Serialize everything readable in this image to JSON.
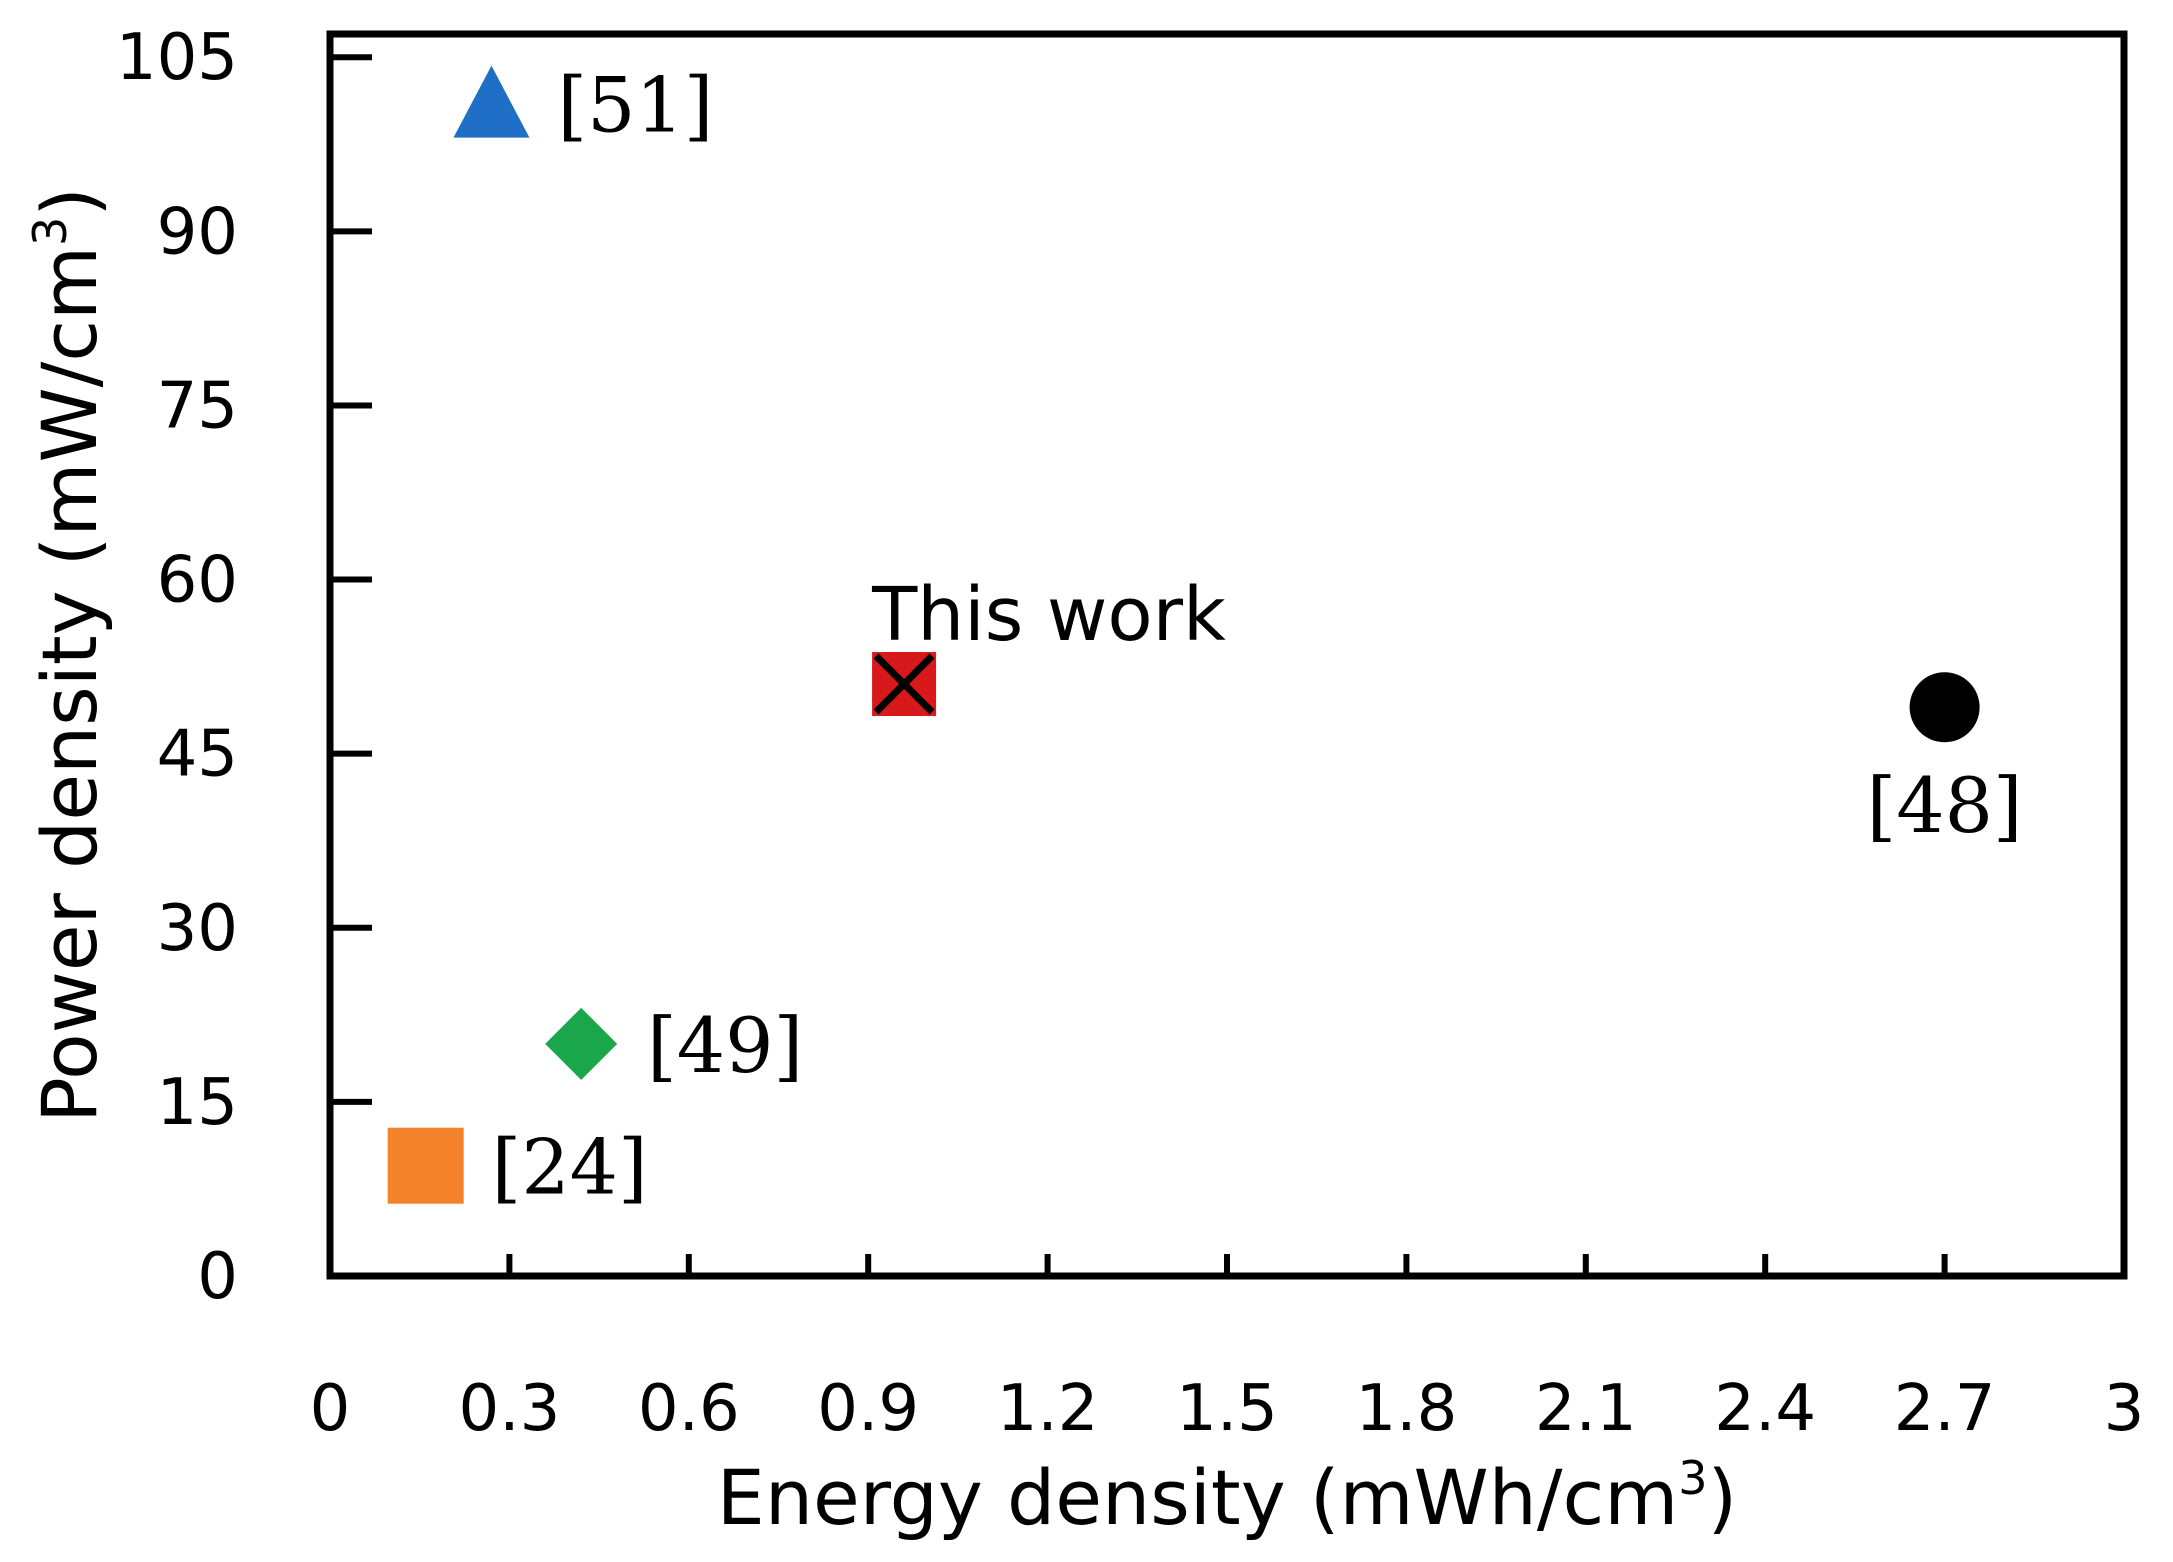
{
  "chart_data": {
    "type": "scatter",
    "title": "",
    "xlabel": "Energy density (mWh/cm",
    "xlabel_sup": "3",
    "xlabel_end": ")",
    "ylabel": "Power density (mW/cm",
    "ylabel_sup": "3",
    "ylabel_end": ")",
    "xlim": [
      0,
      3
    ],
    "ylim": [
      0,
      107
    ],
    "xticks": [
      0,
      0.3,
      0.6,
      0.9,
      1.2,
      1.5,
      1.8,
      2.1,
      2.4,
      2.7,
      3
    ],
    "xtick_labels": [
      "0",
      "0.3",
      "0.6",
      "0.9",
      "1.2",
      "1.5",
      "1.8",
      "2.1",
      "2.4",
      "2.7",
      "3"
    ],
    "yticks": [
      0,
      15,
      30,
      45,
      60,
      75,
      90,
      105
    ],
    "ytick_labels": [
      "0",
      "15",
      "30",
      "45",
      "60",
      "75",
      "90",
      "105"
    ],
    "grid": false,
    "legend": "none",
    "points": [
      {
        "label": "[51]",
        "x": 0.27,
        "y": 101,
        "marker": "triangle",
        "color": "#1f6fc6",
        "label_pos": "right"
      },
      {
        "label": "This work",
        "x": 0.96,
        "y": 51,
        "marker": "square-x",
        "color": "#d7191c",
        "label_pos": "top"
      },
      {
        "label": "[48]",
        "x": 2.7,
        "y": 49,
        "marker": "circle",
        "color": "#000000",
        "label_pos": "below"
      },
      {
        "label": "[49]",
        "x": 0.42,
        "y": 20,
        "marker": "diamond",
        "color": "#1aa64a",
        "label_pos": "right"
      },
      {
        "label": "[24]",
        "x": 0.16,
        "y": 9.5,
        "marker": "square",
        "color": "#f4822a",
        "label_pos": "right"
      }
    ]
  }
}
